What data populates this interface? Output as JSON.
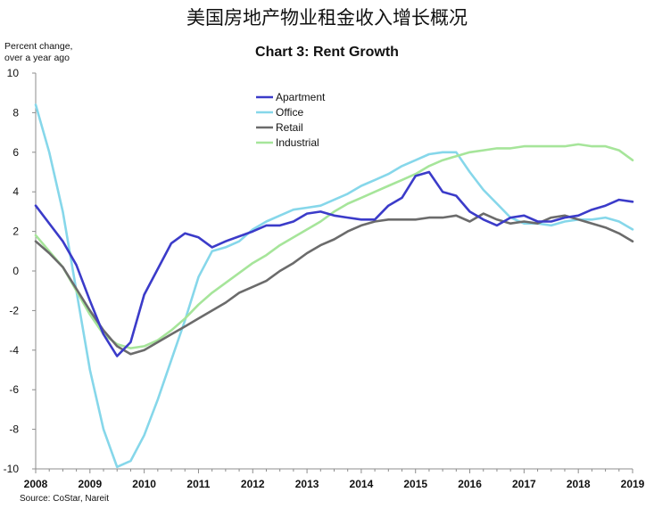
{
  "title": "美国房地产物业租金收入增长概况",
  "chart_data": {
    "type": "line",
    "title": "Chart 3: Rent Growth",
    "ylabel_lines": [
      "Percent change,",
      "over a year ago"
    ],
    "source": "Source: CoStar, Nareit",
    "ylim": [
      -10,
      10
    ],
    "xlim": [
      2008,
      2019
    ],
    "yticks": [
      "10",
      "8",
      "6",
      "4",
      "2",
      "0",
      "-2",
      "-4",
      "-6",
      "-8",
      "-10"
    ],
    "xticks": [
      "2008",
      "2009",
      "2010",
      "2011",
      "2012",
      "2013",
      "2014",
      "2015",
      "2016",
      "2017",
      "2018",
      "2019"
    ],
    "grid": false,
    "legend_position": "top-center",
    "series": [
      {
        "name": "Apartment",
        "color": "#3b3bc9",
        "x": [
          2008.0,
          2008.5,
          2008.75,
          2009.0,
          2009.25,
          2009.5,
          2009.75,
          2010.0,
          2010.5,
          2010.75,
          2011.0,
          2011.25,
          2011.5,
          2012.0,
          2012.25,
          2012.5,
          2012.75,
          2013.0,
          2013.25,
          2013.5,
          2013.75,
          2014.0,
          2014.25,
          2014.5,
          2014.75,
          2015.0,
          2015.25,
          2015.5,
          2015.75,
          2016.0,
          2016.25,
          2016.5,
          2016.75,
          2017.0,
          2017.25,
          2017.5,
          2017.75,
          2018.0,
          2018.25,
          2018.5,
          2018.75,
          2019.0
        ],
        "y": [
          3.3,
          1.5,
          0.3,
          -1.5,
          -3.2,
          -4.3,
          -3.6,
          -1.2,
          1.4,
          1.9,
          1.7,
          1.2,
          1.5,
          2.0,
          2.3,
          2.3,
          2.5,
          2.9,
          3.0,
          2.8,
          2.7,
          2.6,
          2.6,
          3.3,
          3.7,
          4.8,
          5.0,
          4.0,
          3.8,
          3.0,
          2.6,
          2.3,
          2.7,
          2.8,
          2.5,
          2.5,
          2.7,
          2.8,
          3.1,
          3.3,
          3.6,
          3.5
        ]
      },
      {
        "name": "Office",
        "color": "#86d7ea",
        "x": [
          2008.0,
          2008.25,
          2008.5,
          2008.75,
          2009.0,
          2009.25,
          2009.5,
          2009.75,
          2010.0,
          2010.25,
          2010.5,
          2010.75,
          2011.0,
          2011.25,
          2011.5,
          2011.75,
          2012.0,
          2012.25,
          2012.5,
          2012.75,
          2013.0,
          2013.25,
          2013.5,
          2013.75,
          2014.0,
          2014.25,
          2014.5,
          2014.75,
          2015.0,
          2015.25,
          2015.5,
          2015.75,
          2016.0,
          2016.25,
          2016.5,
          2016.75,
          2017.0,
          2017.25,
          2017.5,
          2017.75,
          2018.0,
          2018.25,
          2018.5,
          2018.75,
          2019.0
        ],
        "y": [
          8.4,
          6.0,
          3.0,
          -1.0,
          -5.0,
          -8.0,
          -9.9,
          -9.6,
          -8.3,
          -6.5,
          -4.5,
          -2.5,
          -0.3,
          1.0,
          1.2,
          1.5,
          2.1,
          2.5,
          2.8,
          3.1,
          3.2,
          3.3,
          3.6,
          3.9,
          4.3,
          4.6,
          4.9,
          5.3,
          5.6,
          5.9,
          6.0,
          6.0,
          5.0,
          4.1,
          3.4,
          2.7,
          2.4,
          2.4,
          2.3,
          2.5,
          2.6,
          2.6,
          2.7,
          2.5,
          2.1
        ]
      },
      {
        "name": "Retail",
        "color": "#6b6b6b",
        "x": [
          2008.0,
          2008.25,
          2008.5,
          2008.75,
          2009.0,
          2009.25,
          2009.5,
          2009.75,
          2010.0,
          2010.25,
          2010.5,
          2010.75,
          2011.0,
          2011.25,
          2011.5,
          2011.75,
          2012.0,
          2012.25,
          2012.5,
          2012.75,
          2013.0,
          2013.25,
          2013.5,
          2013.75,
          2014.0,
          2014.25,
          2014.5,
          2014.75,
          2015.0,
          2015.25,
          2015.5,
          2015.75,
          2016.0,
          2016.25,
          2016.5,
          2016.75,
          2017.0,
          2017.25,
          2017.5,
          2017.75,
          2018.0,
          2018.25,
          2018.5,
          2018.75,
          2019.0
        ],
        "y": [
          1.5,
          0.9,
          0.2,
          -0.9,
          -2.0,
          -3.0,
          -3.8,
          -4.2,
          -4.0,
          -3.6,
          -3.2,
          -2.8,
          -2.4,
          -2.0,
          -1.6,
          -1.1,
          -0.8,
          -0.5,
          0.0,
          0.4,
          0.9,
          1.3,
          1.6,
          2.0,
          2.3,
          2.5,
          2.6,
          2.6,
          2.6,
          2.7,
          2.7,
          2.8,
          2.5,
          2.9,
          2.6,
          2.4,
          2.5,
          2.4,
          2.7,
          2.8,
          2.6,
          2.4,
          2.2,
          1.9,
          1.5
        ]
      },
      {
        "name": "Industrial",
        "color": "#a6e59a",
        "x": [
          2008.0,
          2008.25,
          2008.5,
          2008.75,
          2009.0,
          2009.25,
          2009.5,
          2009.75,
          2010.0,
          2010.25,
          2010.5,
          2010.75,
          2011.0,
          2011.25,
          2011.5,
          2011.75,
          2012.0,
          2012.25,
          2012.5,
          2012.75,
          2013.0,
          2013.25,
          2013.5,
          2013.75,
          2014.0,
          2014.25,
          2014.5,
          2014.75,
          2015.0,
          2015.25,
          2015.5,
          2015.75,
          2016.0,
          2016.25,
          2016.5,
          2016.75,
          2017.0,
          2017.25,
          2017.5,
          2017.75,
          2018.0,
          2018.25,
          2018.5,
          2018.75,
          2019.0
        ],
        "y": [
          1.8,
          1.0,
          0.2,
          -1.0,
          -2.2,
          -3.2,
          -3.7,
          -3.9,
          -3.8,
          -3.5,
          -3.0,
          -2.4,
          -1.7,
          -1.1,
          -0.6,
          -0.1,
          0.4,
          0.8,
          1.3,
          1.7,
          2.1,
          2.5,
          3.0,
          3.4,
          3.7,
          4.0,
          4.3,
          4.6,
          4.9,
          5.3,
          5.6,
          5.8,
          6.0,
          6.1,
          6.2,
          6.2,
          6.3,
          6.3,
          6.3,
          6.3,
          6.4,
          6.3,
          6.3,
          6.1,
          5.6
        ]
      }
    ]
  }
}
